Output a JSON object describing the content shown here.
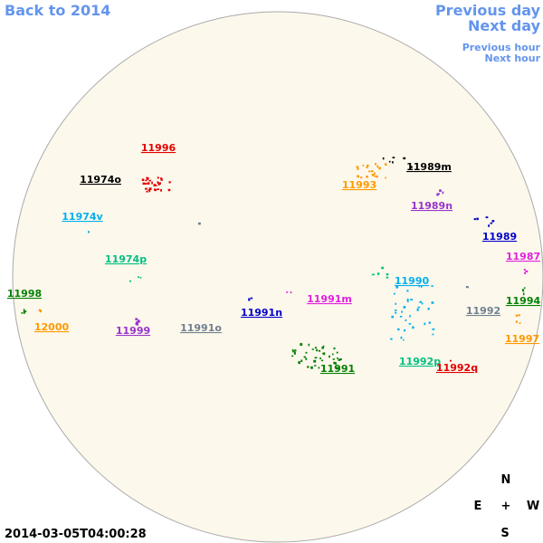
{
  "header": {
    "back": "Back to 2014",
    "previous_day": "Previous day",
    "next_day": "Next day",
    "previous_hour": "Previous hour",
    "next_hour": "Next hour"
  },
  "regions": [
    {
      "label": "11996",
      "color": "#e00000"
    },
    {
      "label": "11974o",
      "color": "#000000"
    },
    {
      "label": "11974v",
      "color": "#00b0f0"
    },
    {
      "label": "11974p",
      "color": "#00c080"
    },
    {
      "label": "11998",
      "color": "#008000"
    },
    {
      "label": "12000",
      "color": "#ff9900"
    },
    {
      "label": "11999",
      "color": "#9933cc"
    },
    {
      "label": "11991o",
      "color": "#708090"
    },
    {
      "label": "11991n",
      "color": "#0000cc"
    },
    {
      "label": "11991m",
      "color": "#e020e0"
    },
    {
      "label": "11991",
      "color": "#008000"
    },
    {
      "label": "11990",
      "color": "#00b0f0"
    },
    {
      "label": "11992p",
      "color": "#00c080"
    },
    {
      "label": "11992q",
      "color": "#e00000"
    },
    {
      "label": "11992",
      "color": "#708090"
    },
    {
      "label": "11989m",
      "color": "#000000"
    },
    {
      "label": "11993",
      "color": "#ff9900"
    },
    {
      "label": "11989n",
      "color": "#9933cc"
    },
    {
      "label": "11989",
      "color": "#0000cc"
    },
    {
      "label": "11987",
      "color": "#e020e0"
    },
    {
      "label": "11994",
      "color": "#008000"
    },
    {
      "label": "11997",
      "color": "#ff9900"
    }
  ],
  "compass": {
    "north": "N",
    "east": "E",
    "center": "+",
    "west": "W",
    "south": "S"
  },
  "timestamp": "2014-03-05T04:00:28"
}
